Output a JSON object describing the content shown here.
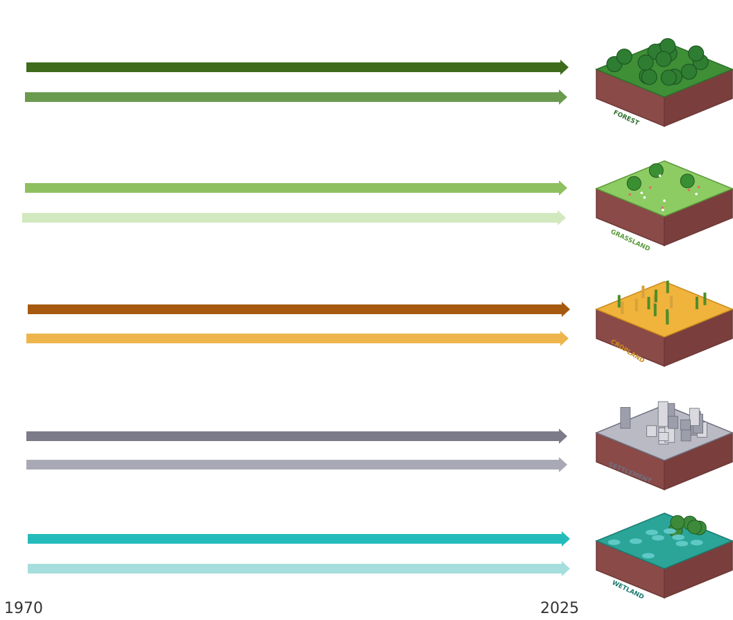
{
  "timeline": {
    "start_label": "1970",
    "end_label": "2025"
  },
  "land_types": [
    {
      "label": "FOREST",
      "arrow_colors": [
        "#3f6b1c",
        "#6a9a4e"
      ],
      "ground": "#3e8f36",
      "soil": "#8a4a48",
      "accent": "#2f6e2a"
    },
    {
      "label": "GRASSLAND",
      "arrow_colors": [
        "#8fc060",
        "#d2e8bf"
      ],
      "ground": "#8ccc63",
      "soil": "#8a4a48",
      "accent": "#5a9a3a"
    },
    {
      "label": "CROPLAND",
      "arrow_colors": [
        "#a65a10",
        "#edb54c"
      ],
      "ground": "#f0b33c",
      "soil": "#8a4a48",
      "accent": "#c98a1c"
    },
    {
      "label": "SETTLEMENT",
      "arrow_colors": [
        "#7b7b8a",
        "#a9a9b6"
      ],
      "ground": "#b9bac4",
      "soil": "#8a4a48",
      "accent": "#6f7080"
    },
    {
      "label": "WETLAND",
      "arrow_colors": [
        "#23bcbb",
        "#a6dedd"
      ],
      "ground": "#2aa597",
      "soil": "#8a4a48",
      "accent": "#1b7a70"
    }
  ]
}
